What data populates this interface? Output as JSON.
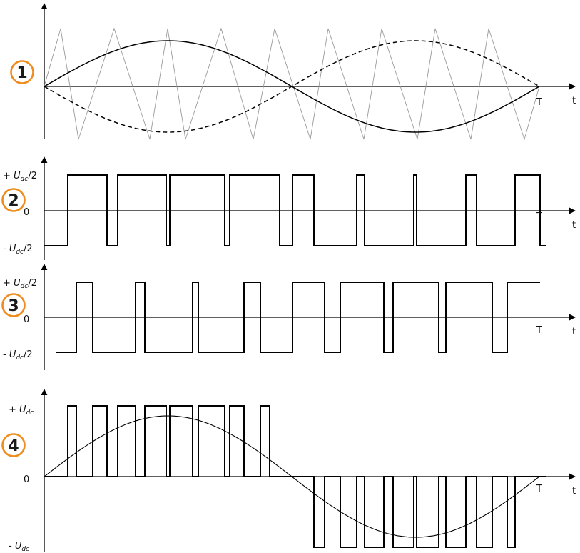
{
  "colors": {
    "badge": "#f08c1e",
    "ink": "#000000",
    "carrier": "#9a9a9a"
  },
  "panels": [
    {
      "id": "1",
      "badge": "1",
      "t_label": "t",
      "T_label": "T",
      "levels": []
    },
    {
      "id": "2",
      "badge": "2",
      "t_label": "t",
      "T_label": "T",
      "levels": [
        {
          "prefix": "+ ",
          "var": "U",
          "sub": "dc",
          "suffix": "/2"
        },
        {
          "prefix": "0",
          "var": "",
          "sub": "",
          "suffix": ""
        },
        {
          "prefix": "- ",
          "var": "U",
          "sub": "dc",
          "suffix": "/2"
        }
      ]
    },
    {
      "id": "3",
      "badge": "3",
      "t_label": "t",
      "T_label": "T",
      "levels": [
        {
          "prefix": "+ ",
          "var": "U",
          "sub": "dc",
          "suffix": "/2"
        },
        {
          "prefix": "0",
          "var": "",
          "sub": "",
          "suffix": ""
        },
        {
          "prefix": "- ",
          "var": "U",
          "sub": "dc",
          "suffix": "/2"
        }
      ]
    },
    {
      "id": "4",
      "badge": "4",
      "t_label": "t",
      "T_label": "T",
      "levels": [
        {
          "prefix": "+ ",
          "var": "U",
          "sub": "dc",
          "suffix": ""
        },
        {
          "prefix": "0",
          "var": "",
          "sub": "",
          "suffix": ""
        },
        {
          "prefix": "- ",
          "var": "U",
          "sub": "dc",
          "suffix": ""
        }
      ]
    }
  ]
}
